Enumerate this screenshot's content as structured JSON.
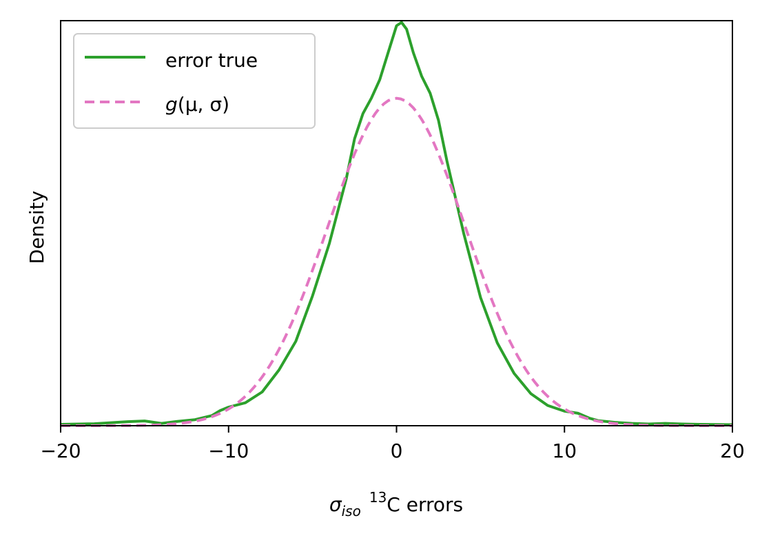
{
  "chart_data": {
    "type": "line",
    "title": "",
    "xlabel": {
      "symbol": "σ",
      "sub": "iso",
      "sup": "13",
      "rest": "C errors"
    },
    "ylabel": "Density",
    "xlim": [
      -20,
      20
    ],
    "ylim": [
      0,
      0.12
    ],
    "xticks": [
      -20,
      -10,
      0,
      10,
      20
    ],
    "xtick_labels": [
      "−20",
      "−10",
      "0",
      "10",
      "20"
    ],
    "yticks_shown": false,
    "grid": false,
    "legend_position": "top-left",
    "series": [
      {
        "name": "error true",
        "style": "solid",
        "color": "#2ca02c",
        "points": [
          [
            -20,
            0.0004
          ],
          [
            -18,
            0.0006
          ],
          [
            -17,
            0.0009
          ],
          [
            -16,
            0.0012
          ],
          [
            -15,
            0.0014
          ],
          [
            -14,
            0.0007
          ],
          [
            -13,
            0.0013
          ],
          [
            -12,
            0.0018
          ],
          [
            -11,
            0.003
          ],
          [
            -10.5,
            0.0045
          ],
          [
            -10,
            0.0055
          ],
          [
            -9,
            0.0068
          ],
          [
            -8,
            0.01
          ],
          [
            -7,
            0.0165
          ],
          [
            -6,
            0.025
          ],
          [
            -5,
            0.0385
          ],
          [
            -4,
            0.054
          ],
          [
            -3,
            0.073
          ],
          [
            -2.5,
            0.085
          ],
          [
            -2,
            0.0925
          ],
          [
            -1.5,
            0.097
          ],
          [
            -1,
            0.1025
          ],
          [
            -0.5,
            0.1105
          ],
          [
            0,
            0.1185
          ],
          [
            0.3,
            0.1195
          ],
          [
            0.6,
            0.1175
          ],
          [
            1,
            0.1105
          ],
          [
            1.5,
            0.1035
          ],
          [
            2,
            0.0985
          ],
          [
            2.5,
            0.0905
          ],
          [
            3,
            0.0785
          ],
          [
            4,
            0.057
          ],
          [
            5,
            0.038
          ],
          [
            6,
            0.0245
          ],
          [
            7,
            0.0155
          ],
          [
            8,
            0.0095
          ],
          [
            9,
            0.006
          ],
          [
            10,
            0.0043
          ],
          [
            10.8,
            0.0037
          ],
          [
            11.5,
            0.0022
          ],
          [
            12,
            0.0015
          ],
          [
            13,
            0.001
          ],
          [
            14,
            0.0007
          ],
          [
            15,
            0.0005
          ],
          [
            16,
            0.0007
          ],
          [
            17,
            0.0005
          ],
          [
            18,
            0.0004
          ],
          [
            20,
            0.0003
          ]
        ]
      },
      {
        "name": "g(μ,σ)",
        "style": "dashed",
        "color": "#e377c2",
        "gaussian": {
          "mu": 0,
          "sigma": 4.1,
          "peak": 0.097
        }
      }
    ]
  },
  "legend": {
    "entries": [
      {
        "label": "error true"
      },
      {
        "label_italic": "g",
        "label_rest": "(μ, σ)"
      }
    ]
  },
  "colors": {
    "true_line": "#2ca02c",
    "gauss_line": "#e377c2",
    "axes": "#000000",
    "legend_border": "#cccccc"
  }
}
